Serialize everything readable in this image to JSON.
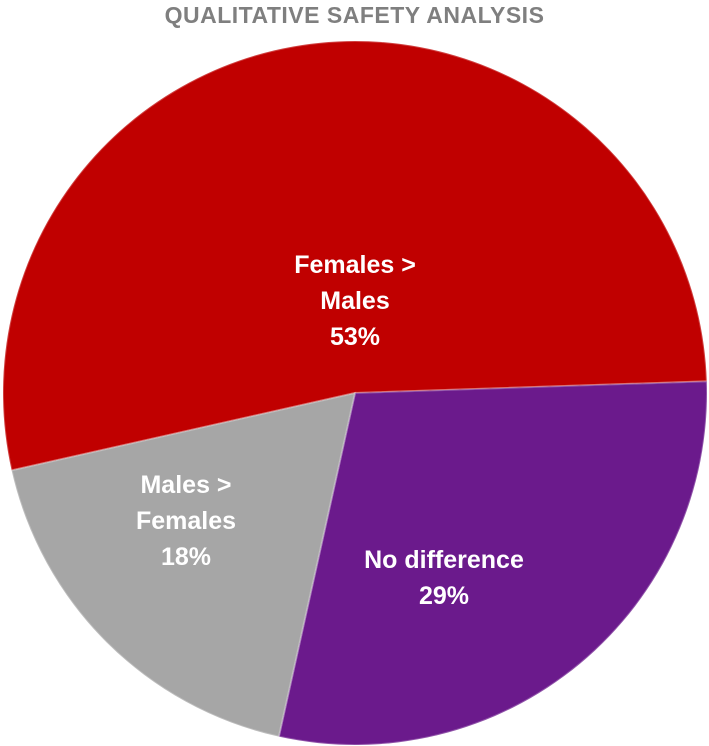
{
  "chart_data": {
    "type": "pie",
    "title": "QUALITATIVE SAFETY ANALYSIS",
    "slices": [
      {
        "category": "Females > Males",
        "label_lines": [
          "Females >",
          "Males",
          "53%"
        ],
        "value": 53,
        "color": "#c00000"
      },
      {
        "category": "No difference",
        "label_lines": [
          "No difference",
          "29%"
        ],
        "value": 29,
        "color": "#6b1a8c"
      },
      {
        "category": "Males > Females",
        "label_lines": [
          "Males >",
          "Females",
          "18%"
        ],
        "value": 18,
        "color": "#a6a6a6"
      }
    ],
    "legend": "none"
  }
}
